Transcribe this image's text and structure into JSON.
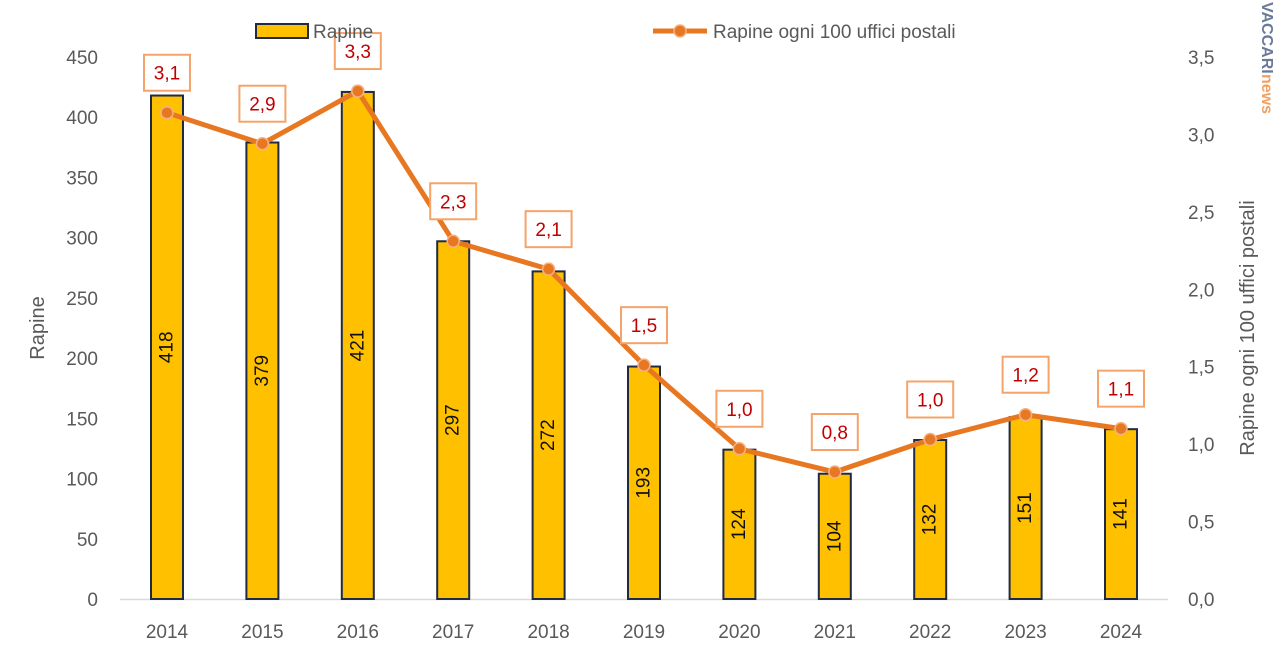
{
  "chart_data": {
    "type": "bar",
    "categories": [
      "2014",
      "2015",
      "2016",
      "2017",
      "2018",
      "2019",
      "2020",
      "2021",
      "2022",
      "2023",
      "2024"
    ],
    "series": [
      {
        "name": "Rapine",
        "type": "bar",
        "axis": "left",
        "color": "#ffc000",
        "values": [
          418,
          379,
          421,
          297,
          272,
          193,
          124,
          104,
          132,
          151,
          141
        ],
        "labels": [
          "418",
          "379",
          "421",
          "297",
          "272",
          "193",
          "124",
          "104",
          "132",
          "151",
          "141"
        ]
      },
      {
        "name": "Rapine ogni 100 uffici postali",
        "type": "line",
        "axis": "right",
        "color": "#e87722",
        "values": [
          3.14,
          2.94,
          3.28,
          2.31,
          2.13,
          1.51,
          0.97,
          0.82,
          1.03,
          1.19,
          1.1
        ],
        "labels": [
          "3,1",
          "2,9",
          "3,3",
          "2,3",
          "2,1",
          "1,5",
          "1,0",
          "0,8",
          "1,0",
          "1,2",
          "1,1"
        ]
      }
    ],
    "ylabel": "Rapine",
    "y2label": "Rapine ogni 100 uffici postali",
    "ylim": [
      0,
      450
    ],
    "y2lim": [
      0,
      3.5
    ],
    "yticks": [
      "0",
      "50",
      "100",
      "150",
      "200",
      "250",
      "300",
      "350",
      "400",
      "450"
    ],
    "y2ticks": [
      "0,0",
      "0,5",
      "1,0",
      "1,5",
      "2,0",
      "2,5",
      "3,0",
      "3,5"
    ],
    "grid": false,
    "legend": "top"
  },
  "watermark": {
    "part1": "VACCARI",
    "part2": "news"
  }
}
